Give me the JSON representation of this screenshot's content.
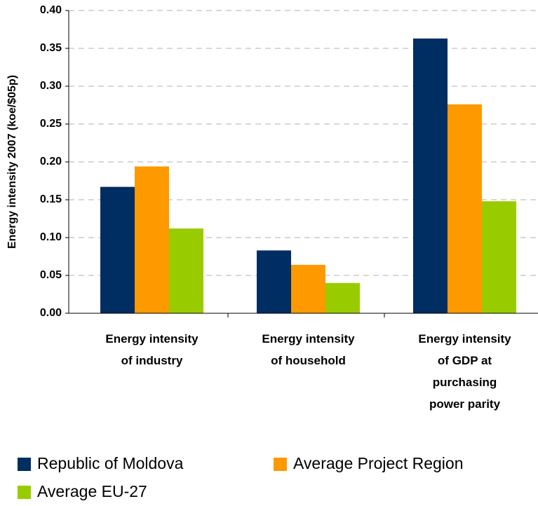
{
  "chart_data": {
    "type": "bar",
    "ylabel": "Energy intensity 2007 (koe/$05p)",
    "categories": [
      "Energy intensity\nof industry",
      "Energy intensity\nof household",
      "Energy intensity\nof GDP at\npurchasing\npower parity"
    ],
    "series": [
      {
        "name": "Republic of Moldova",
        "color": "#002d62",
        "values": [
          0.167,
          0.083,
          0.363
        ]
      },
      {
        "name": "Average Project Region",
        "color": "#ff9900",
        "values": [
          0.194,
          0.064,
          0.276
        ]
      },
      {
        "name": "Average EU-27",
        "color": "#99cc00",
        "values": [
          0.112,
          0.04,
          0.148
        ]
      }
    ],
    "ylim": [
      0,
      0.4
    ],
    "yticks": [
      {
        "value": 0,
        "label": "0.00"
      },
      {
        "value": 0.05,
        "label": "0.05"
      },
      {
        "value": 0.1,
        "label": "0.10"
      },
      {
        "value": 0.15,
        "label": "0.15"
      },
      {
        "value": 0.2,
        "label": "0.20"
      },
      {
        "value": 0.25,
        "label": "0.25"
      },
      {
        "value": 0.3,
        "label": "0.30"
      },
      {
        "value": 0.35,
        "label": "0.35"
      },
      {
        "value": 0.4,
        "label": "0.40"
      }
    ],
    "grid": true,
    "legend": "bottom"
  }
}
